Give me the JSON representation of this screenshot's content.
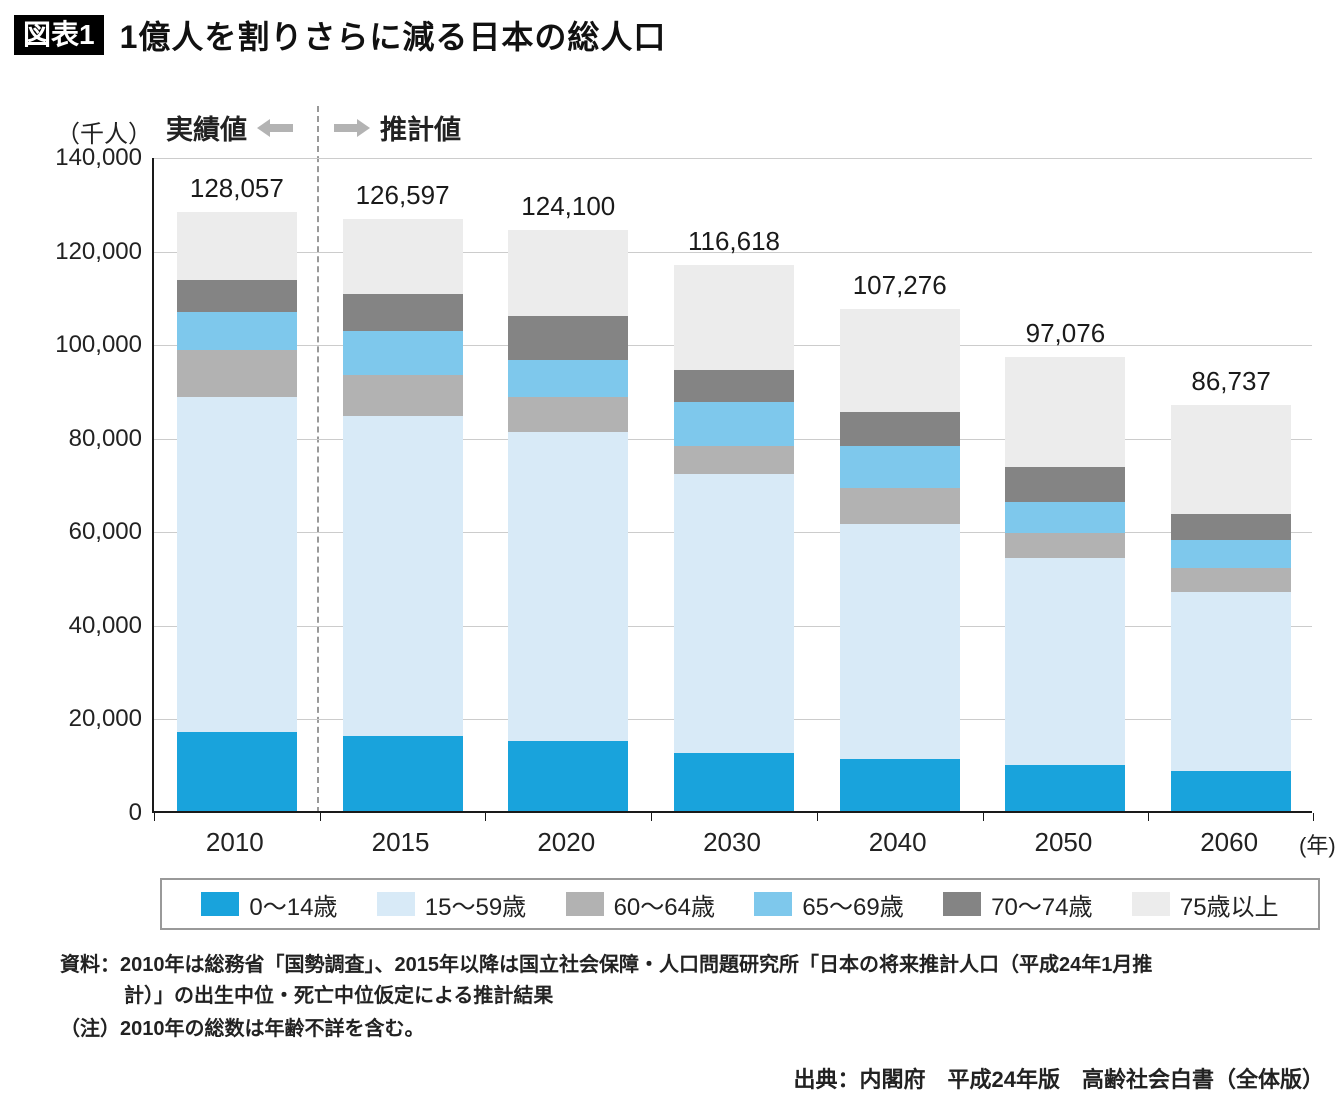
{
  "header": {
    "badge": "図表1",
    "title": "1億人を割りさらに減る日本の総人口"
  },
  "chart": {
    "unit_label": "（千人）",
    "actual_label": "実績値",
    "projection_label": "推計値",
    "year_suffix": "(年)"
  },
  "chart_data": {
    "type": "bar",
    "subtype": "stacked",
    "title": "1億人を割りさらに減る日本の総人口",
    "ylabel": "（千人）",
    "ylim": [
      0,
      140000
    ],
    "grid": true,
    "legend_position": "bottom",
    "categories": [
      "2010",
      "2015",
      "2020",
      "2030",
      "2040",
      "2050",
      "2060"
    ],
    "series": [
      {
        "name": "0〜14歳",
        "color": "#19a3dc",
        "values": [
          16900,
          16000,
          15000,
          12300,
          11100,
          9800,
          8500
        ]
      },
      {
        "name": "15〜59歳",
        "color": "#d8eaf7",
        "values": [
          71500,
          68500,
          66000,
          59700,
          50200,
          44200,
          38300
        ]
      },
      {
        "name": "60〜64歳",
        "color": "#b2b2b2",
        "values": [
          10100,
          8600,
          7400,
          6000,
          7700,
          5500,
          5200
        ]
      },
      {
        "name": "65〜69歳",
        "color": "#7ec8ec",
        "values": [
          8200,
          9600,
          8100,
          9500,
          9000,
          6500,
          6000
        ]
      },
      {
        "name": "70〜74歳",
        "color": "#848484",
        "values": [
          6900,
          7900,
          9300,
          6700,
          7300,
          7500,
          5500
        ]
      },
      {
        "name": "75歳以上",
        "color": "#ececec",
        "values": [
          14457,
          15997,
          18300,
          22418,
          21976,
          23576,
          23237
        ]
      }
    ],
    "totals": [
      128057,
      126597,
      124100,
      116618,
      107276,
      97076,
      86737
    ],
    "total_labels": [
      "128,057",
      "126,597",
      "124,100",
      "116,618",
      "107,276",
      "97,076",
      "86,737"
    ],
    "yticks": [
      {
        "value": 0,
        "label": "0"
      },
      {
        "value": 20000,
        "label": "20,000"
      },
      {
        "value": 40000,
        "label": "40,000"
      },
      {
        "value": 60000,
        "label": "60,000"
      },
      {
        "value": 80000,
        "label": "80,000"
      },
      {
        "value": 100000,
        "label": "100,000"
      },
      {
        "value": 120000,
        "label": "120,000"
      },
      {
        "value": 140000,
        "label": "140,000"
      }
    ]
  },
  "notes": {
    "source_prefix": "資料：",
    "source_line1": "2010年は総務省「国勢調査」、2015年以降は国立社会保障・人口問題研究所「日本の将来推計人口（平成24年1月推",
    "source_line2": "計）」の出生中位・死亡中位仮定による推計結果",
    "note": "（注）2010年の総数は年齢不詳を含む。",
    "credit": "出典：内閣府　平成24年版　高齢社会白書（全体版）"
  }
}
